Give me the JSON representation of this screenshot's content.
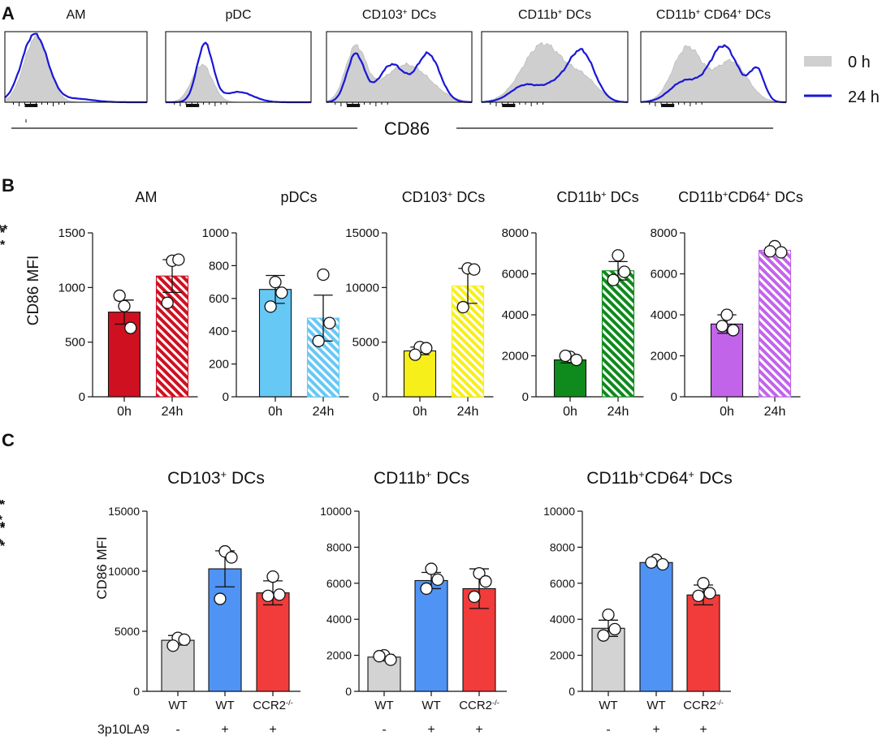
{
  "colors": {
    "black": "#111111",
    "gray_fill": "#cfcfcf",
    "blue_line": "#1a16d6",
    "am": "#cf1020",
    "pdc": "#66c8f5",
    "cd103": "#f7ef1a",
    "cd11b": "#0f8a1c",
    "cd64": "#c264ea",
    "wt_gray": "#d3d3d3",
    "wt_blue": "#4f93f5",
    "ccr2_red": "#f23b3b"
  },
  "panel_labels": {
    "a": "A",
    "b": "B",
    "c": "C"
  },
  "panel_a": {
    "titles": [
      {
        "main": "AM",
        "sup": "",
        "tail": ""
      },
      {
        "main": "pDC",
        "sup": "",
        "tail": ""
      },
      {
        "main": "CD103",
        "sup": "+",
        "tail": " DCs"
      },
      {
        "main": "CD11b",
        "sup": "+",
        "tail": " DCs"
      },
      {
        "main": "CD11b",
        "sup": "+",
        "tail": " CD64",
        "sup2": "+",
        "tail2": " DCs"
      }
    ],
    "axis_label": "CD86",
    "legend": {
      "item_0h": "0 h",
      "item_24h": "24 h"
    }
  },
  "chart_data": [
    {
      "type": "bar",
      "panel": "B",
      "title": "AM",
      "ylabel": "CD86 MFI",
      "categories": [
        "0h",
        "24h"
      ],
      "values": [
        775,
        1105
      ],
      "errors": [
        110,
        150
      ],
      "points": [
        [
          830,
          630,
          925
        ],
        [
          1245,
          1255,
          860
        ]
      ],
      "ylim": [
        0,
        1500
      ],
      "ticks": [
        "0",
        "500",
        "1000",
        "1500"
      ],
      "significance": []
    },
    {
      "type": "bar",
      "panel": "B",
      "title": "pDCs",
      "categories": [
        "0h",
        "24h"
      ],
      "values": [
        655,
        480
      ],
      "errors": [
        85,
        140
      ],
      "points": [
        [
          700,
          635,
          550
        ],
        [
          745,
          450,
          340
        ]
      ],
      "ylim": [
        0,
        1000
      ],
      "ticks": [
        "0",
        "200",
        "400",
        "600",
        "800",
        "1000"
      ],
      "significance": []
    },
    {
      "type": "bar",
      "panel": "B",
      "title": "CD103+ DCs",
      "categories": [
        "0h",
        "24h"
      ],
      "values": [
        4200,
        10150
      ],
      "errors": [
        350,
        1600
      ],
      "points": [
        [
          4550,
          4450,
          3850
        ],
        [
          11750,
          11650,
          8200
        ]
      ],
      "ylim": [
        0,
        15000
      ],
      "ticks": [
        "0",
        "5000",
        "10000",
        "15000"
      ],
      "significance": [
        {
          "from": 0,
          "to": 1,
          "label": "**"
        }
      ]
    },
    {
      "type": "bar",
      "panel": "B",
      "title": "CD11b+ DCs",
      "categories": [
        "0h",
        "24h"
      ],
      "values": [
        1800,
        6150
      ],
      "errors": [
        150,
        450
      ],
      "points": [
        [
          1950,
          1800,
          2000
        ],
        [
          6900,
          6100,
          5700
        ]
      ],
      "ylim": [
        0,
        8000
      ],
      "ticks": [
        "0",
        "2000",
        "4000",
        "6000",
        "8000"
      ],
      "significance": [
        {
          "from": 0,
          "to": 1,
          "label": "***"
        }
      ]
    },
    {
      "type": "bar",
      "panel": "B",
      "title": "CD11b+CD64+ DCs",
      "categories": [
        "0h",
        "24h"
      ],
      "values": [
        3550,
        7150
      ],
      "errors": [
        450,
        150
      ],
      "points": [
        [
          4000,
          3250,
          3450
        ],
        [
          7350,
          7050,
          7100
        ]
      ],
      "ylim": [
        0,
        8000
      ],
      "ticks": [
        "0",
        "2000",
        "4000",
        "6000",
        "8000"
      ],
      "significance": [
        {
          "from": 0,
          "to": 1,
          "label": "**"
        }
      ]
    },
    {
      "type": "bar",
      "panel": "C",
      "title": "CD103+ DCs",
      "ylabel": "CD86 MFI",
      "categories": [
        "WT",
        "WT",
        "CCR2-/-"
      ],
      "treatment": [
        "-",
        "+",
        "+"
      ],
      "values": [
        4250,
        10200,
        8200
      ],
      "errors": [
        400,
        1500,
        1000
      ],
      "points": [
        [
          4450,
          4300,
          3800
        ],
        [
          11650,
          11150,
          7700
        ],
        [
          9550,
          8050,
          7950
        ]
      ],
      "ylim": [
        0,
        15000
      ],
      "ticks": [
        "0",
        "5000",
        "10000",
        "15000"
      ],
      "significance": [
        {
          "from": 0,
          "to": 1,
          "label": "**"
        },
        {
          "from": 0,
          "to": 2,
          "label": "**"
        }
      ]
    },
    {
      "type": "bar",
      "panel": "C",
      "title": "CD11b+ DCs",
      "categories": [
        "WT",
        "WT",
        "CCR2-/-"
      ],
      "treatment": [
        "-",
        "+",
        "+"
      ],
      "values": [
        1900,
        6150,
        5700
      ],
      "errors": [
        150,
        450,
        1100
      ],
      "points": [
        [
          2000,
          1750,
          1950
        ],
        [
          6800,
          6200,
          5700
        ],
        [
          6550,
          6100,
          5250
        ]
      ],
      "ylim": [
        0,
        10000
      ],
      "ticks": [
        "0",
        "2000",
        "4000",
        "6000",
        "8000",
        "10000"
      ],
      "significance": [
        {
          "from": 0,
          "to": 1,
          "label": "**"
        },
        {
          "from": 0,
          "to": 2,
          "label": "*"
        }
      ]
    },
    {
      "type": "bar",
      "panel": "C",
      "title": "CD11b+CD64+ DCs",
      "categories": [
        "WT",
        "WT",
        "CCR2-/-"
      ],
      "treatment": [
        "-",
        "+",
        "+"
      ],
      "values": [
        3500,
        7150,
        5350
      ],
      "errors": [
        450,
        150,
        550
      ],
      "points": [
        [
          4250,
          3450,
          3100
        ],
        [
          7300,
          7050,
          7150
        ],
        [
          6000,
          5450,
          5300
        ]
      ],
      "ylim": [
        0,
        10000
      ],
      "ticks": [
        "0",
        "2000",
        "4000",
        "6000",
        "8000",
        "10000"
      ],
      "significance": [
        {
          "from": 0,
          "to": 1,
          "label": "**"
        },
        {
          "from": 0,
          "to": 2,
          "label": "*"
        },
        {
          "from": 1,
          "to": 2,
          "label": "*"
        }
      ]
    }
  ],
  "panel_c": {
    "treatment_label": "3p10LA9",
    "ccr2": {
      "base": "CCR2",
      "sup": "-/-"
    },
    "titles": [
      {
        "main": "CD103",
        "sup": "+",
        "tail": " DCs"
      },
      {
        "main": "CD11b",
        "sup": "+",
        "tail": " DCs"
      },
      {
        "main": "CD11b",
        "sup": "+",
        "tail": "CD64",
        "sup2": "+",
        "tail2": " DCs"
      }
    ]
  },
  "panel_b_titles": [
    {
      "main": "AM",
      "sup": "",
      "tail": ""
    },
    {
      "main": "pDCs",
      "sup": "",
      "tail": ""
    },
    {
      "main": "CD103",
      "sup": "+",
      "tail": " DCs"
    },
    {
      "main": "CD11b",
      "sup": "+",
      "tail": " DCs"
    },
    {
      "main": "CD11b",
      "sup": "+",
      "tail": "CD64",
      "sup2": "+",
      "tail2": " DCs"
    }
  ]
}
